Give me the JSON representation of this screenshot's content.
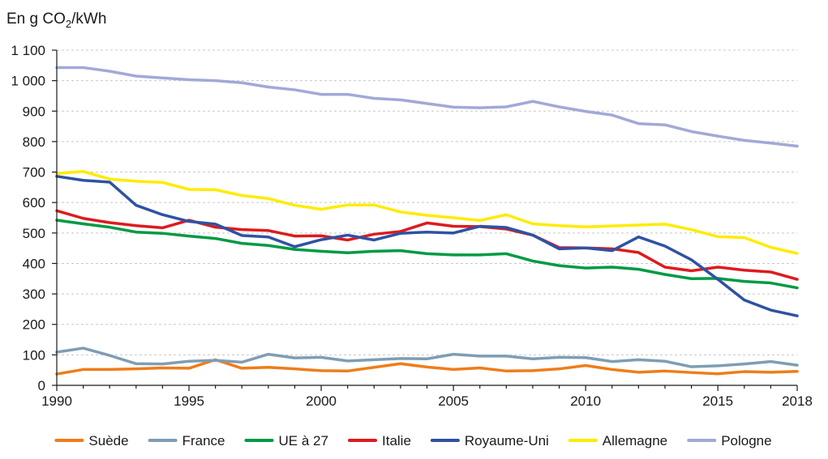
{
  "chart_data": {
    "type": "line",
    "title": "",
    "ylabel": {
      "prefix": "En g CO",
      "subscript": "2",
      "suffix": "/kWh"
    },
    "xlabel": "",
    "x": [
      1990,
      1991,
      1992,
      1993,
      1994,
      1995,
      1996,
      1997,
      1998,
      1999,
      2000,
      2001,
      2002,
      2003,
      2004,
      2005,
      2006,
      2007,
      2008,
      2009,
      2010,
      2011,
      2012,
      2013,
      2014,
      2015,
      2016,
      2017,
      2018
    ],
    "xlim": [
      1990,
      2018
    ],
    "ylim": [
      0,
      1100
    ],
    "x_ticks": [
      1990,
      1995,
      2000,
      2005,
      2010,
      2015,
      2018
    ],
    "x_tick_labels": [
      "1990",
      "1995",
      "2000",
      "2005",
      "2010",
      "2015",
      "2018"
    ],
    "y_ticks": [
      0,
      100,
      200,
      300,
      400,
      500,
      600,
      700,
      800,
      900,
      1000,
      1100
    ],
    "y_tick_labels": [
      "0",
      "100",
      "200",
      "300",
      "400",
      "500",
      "600",
      "700",
      "800",
      "900",
      "1 000",
      "1 100"
    ],
    "grid": true,
    "legend_position": "bottom",
    "series": [
      {
        "name": "Suède",
        "color": "#ee7d1a",
        "values": [
          37,
          52,
          52,
          54,
          57,
          56,
          84,
          56,
          59,
          54,
          48,
          47,
          59,
          71,
          60,
          52,
          57,
          47,
          48,
          54,
          65,
          52,
          43,
          47,
          42,
          38,
          45,
          43,
          46
        ]
      },
      {
        "name": "France",
        "color": "#7f9db4",
        "values": [
          109,
          122,
          98,
          71,
          70,
          79,
          82,
          76,
          102,
          90,
          92,
          80,
          84,
          88,
          87,
          102,
          96,
          96,
          87,
          92,
          91,
          78,
          84,
          79,
          61,
          64,
          70,
          78,
          66
        ]
      },
      {
        "name": "UE à 27",
        "color": "#009a43",
        "values": [
          542,
          530,
          519,
          503,
          499,
          490,
          482,
          466,
          459,
          446,
          440,
          435,
          440,
          442,
          432,
          428,
          428,
          432,
          408,
          393,
          385,
          388,
          381,
          364,
          350,
          351,
          341,
          336,
          320
        ]
      },
      {
        "name": "Italie",
        "color": "#dd1b1d",
        "values": [
          573,
          548,
          534,
          524,
          517,
          542,
          519,
          511,
          508,
          490,
          491,
          477,
          496,
          505,
          533,
          522,
          521,
          513,
          493,
          452,
          451,
          448,
          436,
          388,
          376,
          388,
          378,
          372,
          348
        ]
      },
      {
        "name": "Royaume-Uni",
        "color": "#2e52a3",
        "values": [
          686,
          673,
          667,
          591,
          560,
          538,
          529,
          492,
          487,
          455,
          478,
          493,
          477,
          499,
          503,
          500,
          522,
          518,
          493,
          448,
          451,
          442,
          487,
          457,
          412,
          348,
          280,
          247,
          228
        ]
      },
      {
        "name": "Allemagne",
        "color": "#ffeb00",
        "values": [
          695,
          702,
          677,
          670,
          666,
          643,
          642,
          623,
          613,
          591,
          578,
          592,
          592,
          569,
          558,
          550,
          541,
          560,
          530,
          524,
          520,
          523,
          526,
          529,
          511,
          488,
          485,
          453,
          433
        ]
      },
      {
        "name": "Pologne",
        "color": "#a1a9d7",
        "values": [
          1043,
          1043,
          1031,
          1015,
          1009,
          1003,
          1000,
          993,
          979,
          970,
          955,
          955,
          942,
          937,
          925,
          913,
          911,
          914,
          932,
          914,
          899,
          887,
          859,
          855,
          833,
          818,
          804,
          795,
          785
        ]
      }
    ]
  }
}
